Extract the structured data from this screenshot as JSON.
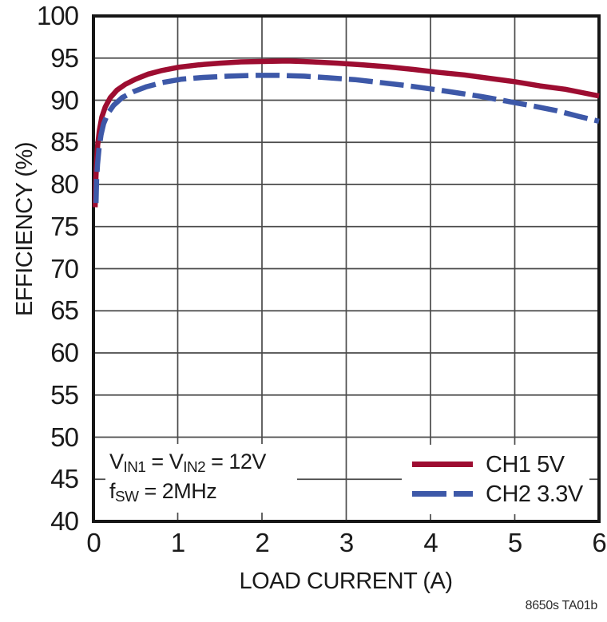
{
  "figure": {
    "footer_reference": "8650s TA01b"
  },
  "chart_data": {
    "type": "line",
    "title": "",
    "xlabel": "LOAD CURRENT (A)",
    "ylabel": "EFFICIENCY (%)",
    "xlim": [
      0,
      6
    ],
    "ylim": [
      40,
      100
    ],
    "x_ticks": [
      0,
      1,
      2,
      3,
      4,
      5,
      6
    ],
    "y_ticks": [
      40,
      45,
      50,
      55,
      60,
      65,
      70,
      75,
      80,
      85,
      90,
      95,
      100
    ],
    "grid": true,
    "legend_position": "bottom-right",
    "colors": {
      "grid": "#4a4a4a",
      "axis_border": "#161616",
      "background": "#ffffff",
      "text": "#1a1a1a"
    },
    "series": [
      {
        "name": "CH1 5V",
        "color": "#9d0d31",
        "style": "solid",
        "points": [
          [
            0.02,
            77.3
          ],
          [
            0.027,
            80.2
          ],
          [
            0.037,
            82.6
          ],
          [
            0.05,
            84.7
          ],
          [
            0.07,
            86.4
          ],
          [
            0.1,
            88.0
          ],
          [
            0.14,
            89.2
          ],
          [
            0.2,
            90.3
          ],
          [
            0.28,
            91.2
          ],
          [
            0.38,
            91.9
          ],
          [
            0.5,
            92.5
          ],
          [
            0.65,
            93.1
          ],
          [
            0.8,
            93.5
          ],
          [
            1.0,
            93.9
          ],
          [
            1.25,
            94.2
          ],
          [
            1.5,
            94.4
          ],
          [
            1.75,
            94.55
          ],
          [
            2.0,
            94.6
          ],
          [
            2.3,
            94.65
          ],
          [
            2.6,
            94.55
          ],
          [
            2.9,
            94.4
          ],
          [
            3.2,
            94.2
          ],
          [
            3.5,
            93.95
          ],
          [
            3.8,
            93.65
          ],
          [
            4.1,
            93.3
          ],
          [
            4.4,
            93.0
          ],
          [
            4.7,
            92.6
          ],
          [
            5.0,
            92.2
          ],
          [
            5.3,
            91.7
          ],
          [
            5.6,
            91.3
          ],
          [
            5.8,
            90.9
          ],
          [
            6.0,
            90.5
          ]
        ]
      },
      {
        "name": "CH2 3.3V",
        "color": "#3d58a8",
        "style": "dashed",
        "points": [
          [
            0.03,
            77.8
          ],
          [
            0.037,
            80.5
          ],
          [
            0.048,
            82.4
          ],
          [
            0.065,
            84.2
          ],
          [
            0.09,
            85.9
          ],
          [
            0.12,
            87.2
          ],
          [
            0.17,
            88.4
          ],
          [
            0.24,
            89.4
          ],
          [
            0.34,
            90.3
          ],
          [
            0.47,
            91.0
          ],
          [
            0.63,
            91.6
          ],
          [
            0.82,
            92.1
          ],
          [
            1.05,
            92.5
          ],
          [
            1.3,
            92.7
          ],
          [
            1.6,
            92.85
          ],
          [
            1.9,
            92.95
          ],
          [
            2.2,
            92.95
          ],
          [
            2.5,
            92.85
          ],
          [
            2.8,
            92.65
          ],
          [
            3.1,
            92.45
          ],
          [
            3.4,
            92.1
          ],
          [
            3.7,
            91.75
          ],
          [
            4.0,
            91.35
          ],
          [
            4.3,
            90.9
          ],
          [
            4.6,
            90.45
          ],
          [
            4.9,
            89.9
          ],
          [
            5.2,
            89.35
          ],
          [
            5.5,
            88.75
          ],
          [
            5.75,
            88.1
          ],
          [
            6.0,
            87.5
          ]
        ]
      }
    ],
    "annotation": {
      "lines": [
        {
          "parts": [
            {
              "text": "V"
            },
            {
              "text": "IN1",
              "sub": true
            },
            {
              "text": " = V"
            },
            {
              "text": "IN2",
              "sub": true
            },
            {
              "text": " = 12V"
            }
          ]
        },
        {
          "parts": [
            {
              "text": "f"
            },
            {
              "text": "SW",
              "sub": true
            },
            {
              "text": " = 2MHz"
            }
          ]
        }
      ]
    }
  }
}
